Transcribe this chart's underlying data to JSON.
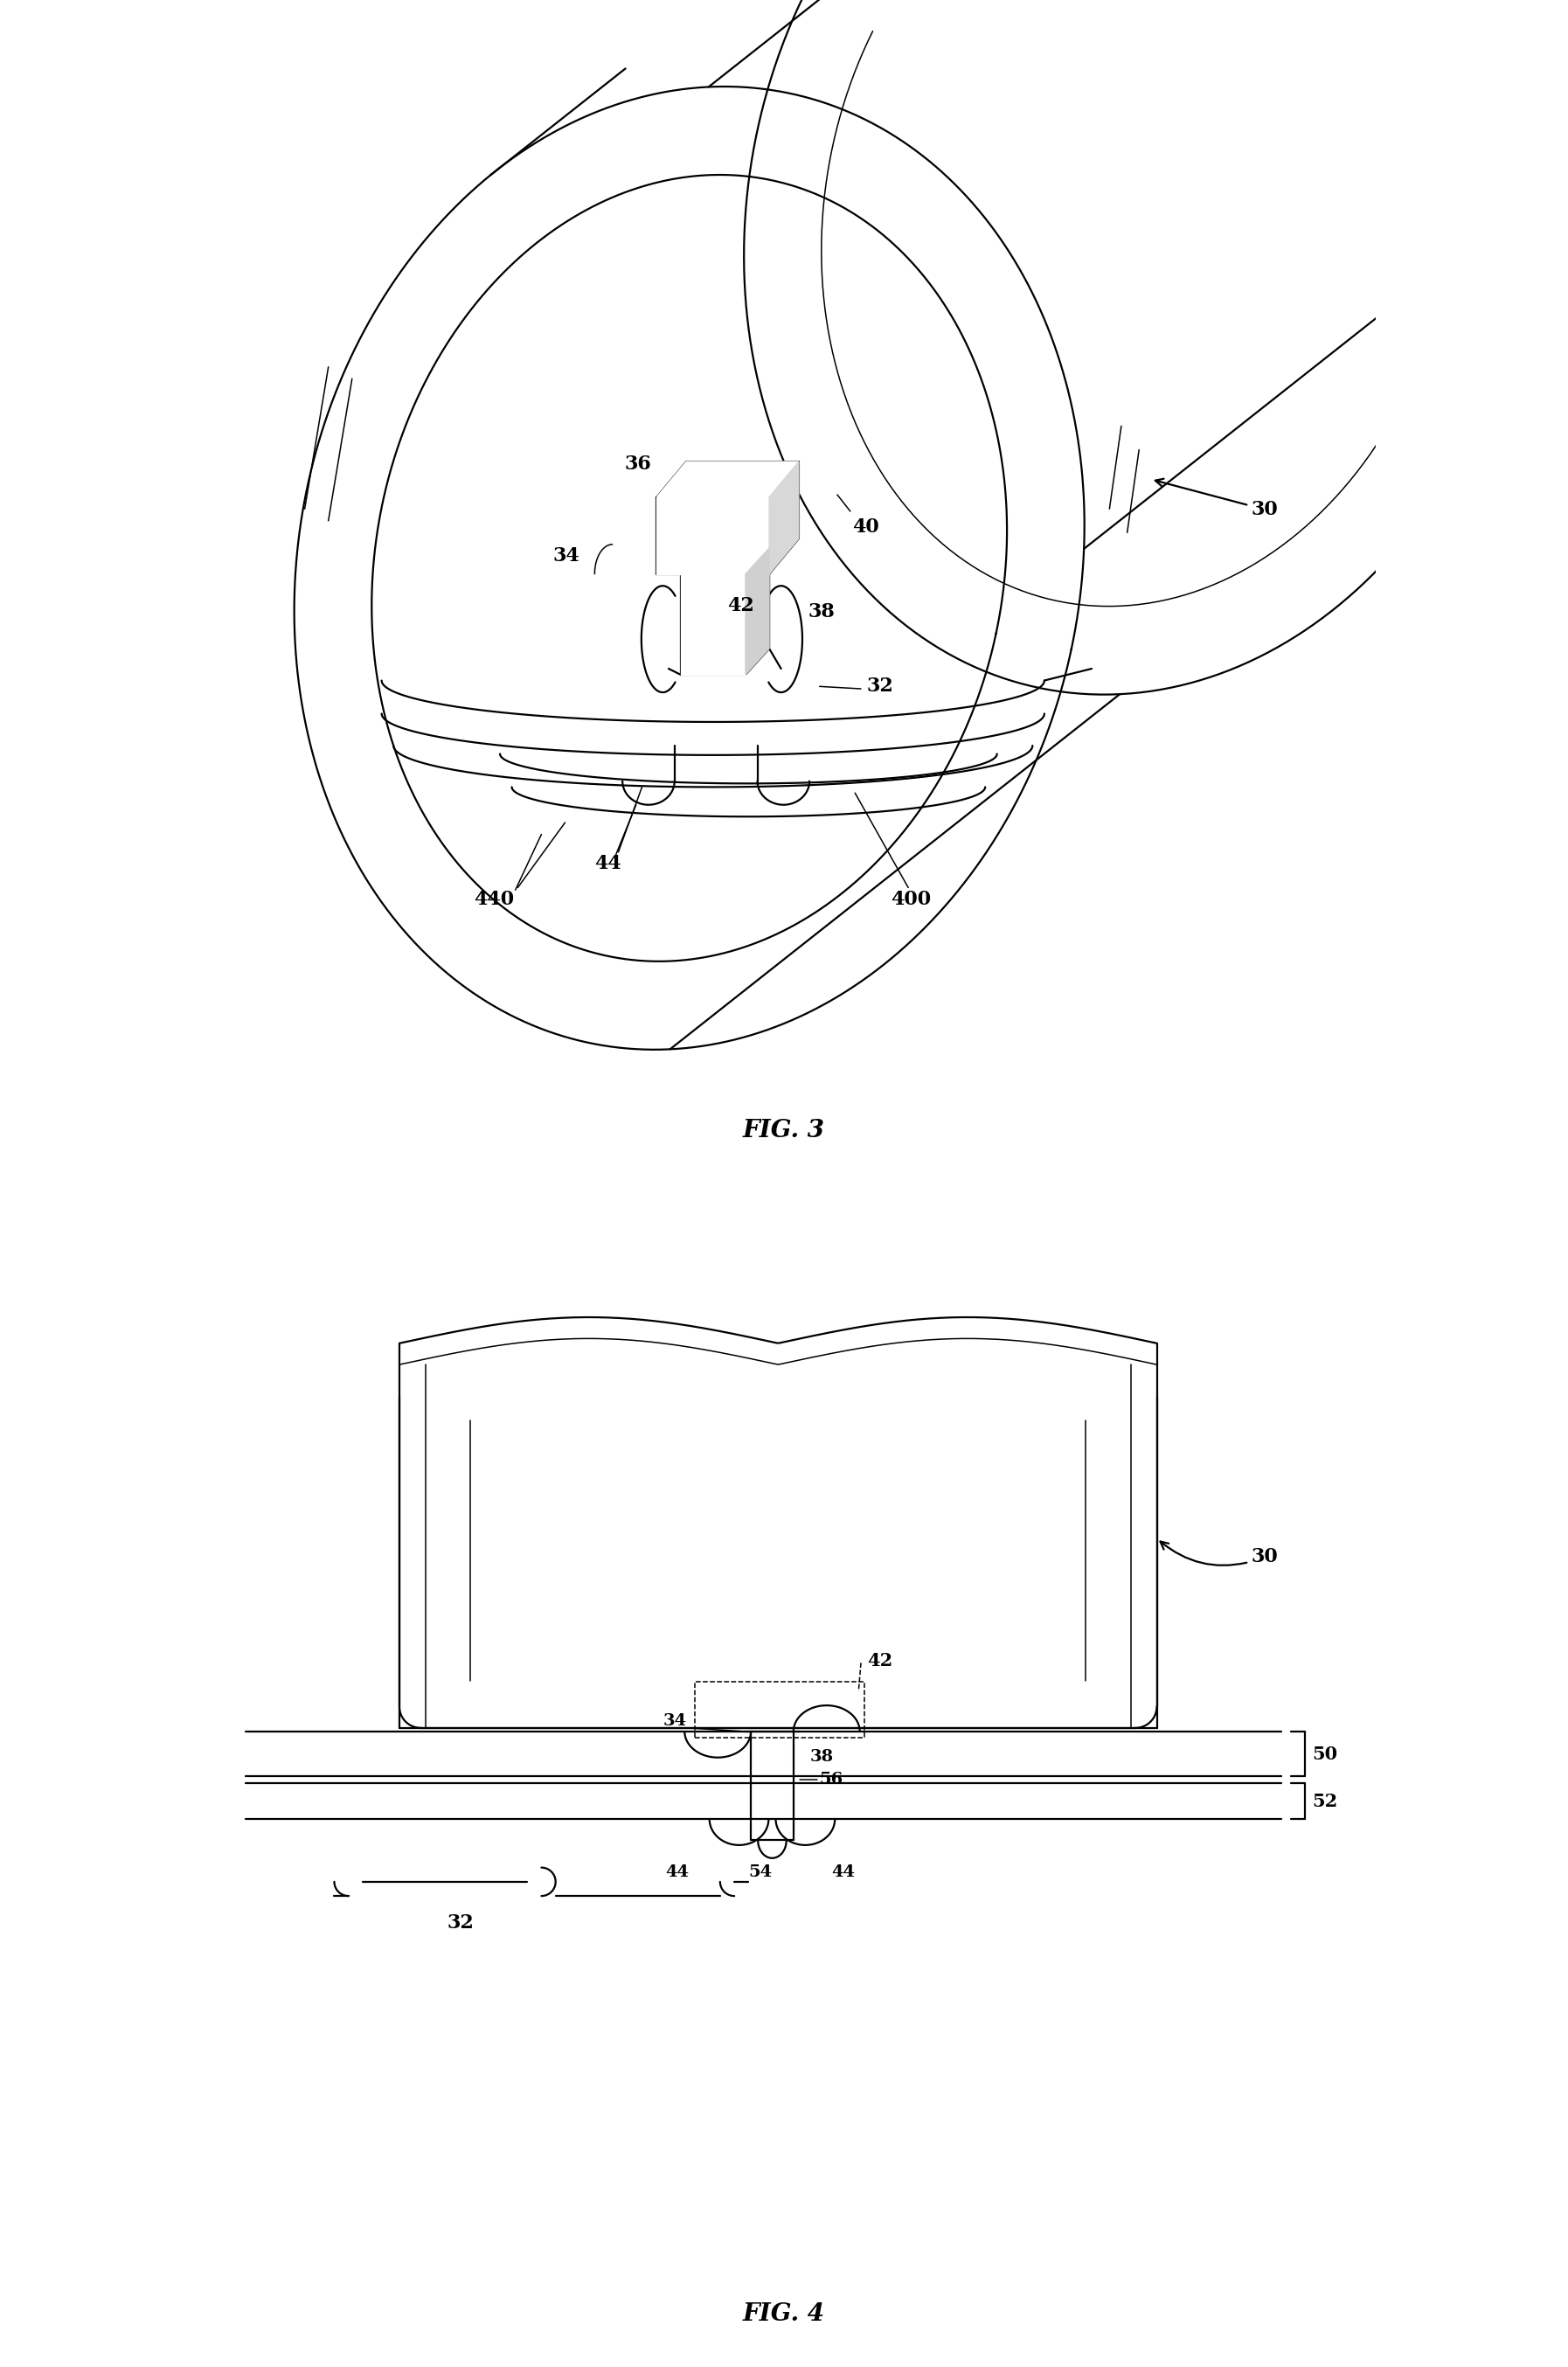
{
  "fig_width": 17.94,
  "fig_height": 27.08,
  "bg_color": "#ffffff",
  "lc": "#000000",
  "lw": 1.6,
  "tlw": 1.1,
  "fig3_title": "FIG. 3",
  "fig4_title": "FIG. 4",
  "font_size": 16,
  "title_font_size": 20
}
